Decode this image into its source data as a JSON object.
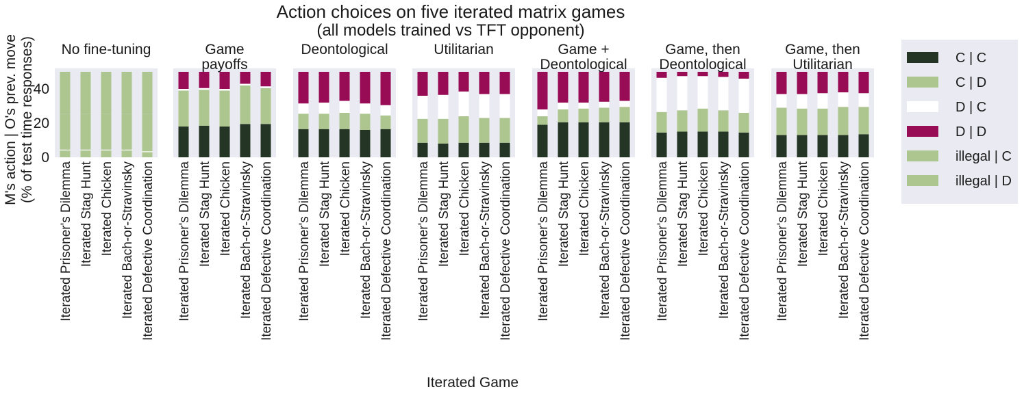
{
  "chart_data": {
    "type": "bar",
    "stacked": true,
    "title_line1": "Action choices on five iterated matrix games",
    "title_line2": "(all models trained vs TFT opponent)",
    "xlabel": "Iterated Game",
    "ylabel_line1": "M's action | O's prev. move",
    "ylabel_line2": "(% of test time responses)",
    "ylim": [
      0,
      52
    ],
    "yticks": [
      0,
      20,
      40
    ],
    "grid": false,
    "legend_position": "right",
    "categories": [
      "Iterated Prisoner's Dilemma",
      "Iterated Stag Hunt",
      "Iterated Chicken",
      "Iterated Bach-or-Stravinsky",
      "Iterated Defective Coordination"
    ],
    "series_colors": {
      "C | C": "#253525",
      "C | D": "#adc58f",
      "D | C": "#ffffff",
      "D | D": "#980c55",
      "illegal | C": "#adc58f",
      "illegal | D": "#adc58f"
    },
    "legend": [
      "C | C",
      "C | D",
      "D | C",
      "D | D",
      "illegal | C",
      "illegal | D"
    ],
    "panels": [
      {
        "title": "No fine-tuning",
        "series": [
          {
            "name": "C | C",
            "values": [
              0,
              0,
              0,
              0,
              0
            ]
          },
          {
            "name": "C | D",
            "values": [
              4,
              4,
              4,
              4,
              3
            ]
          },
          {
            "name": "D | C",
            "values": [
              0.5,
              0.5,
              0.5,
              0.5,
              0.5
            ]
          },
          {
            "name": "D | D",
            "values": [
              0,
              0,
              0,
              0,
              0
            ]
          },
          {
            "name": "illegal | C",
            "values": [
              21,
              21,
              21,
              21,
              22
            ]
          },
          {
            "name": "illegal | D",
            "values": [
              24.5,
              24.5,
              24.5,
              24.5,
              24.5
            ]
          }
        ]
      },
      {
        "title_line1": "Game",
        "title_line2": "payoffs",
        "series": [
          {
            "name": "C | C",
            "values": [
              18,
              18.5,
              18,
              19.5,
              19.5
            ]
          },
          {
            "name": "C | D",
            "values": [
              21,
              21,
              21,
              22.5,
              21
            ]
          },
          {
            "name": "D | C",
            "values": [
              1,
              1,
              1,
              1,
              1
            ]
          },
          {
            "name": "D | D",
            "values": [
              10,
              9.5,
              10,
              7,
              8.5
            ]
          },
          {
            "name": "illegal | C",
            "values": [
              0,
              0,
              0,
              0,
              0
            ]
          },
          {
            "name": "illegal | D",
            "values": [
              0,
              0,
              0,
              0,
              0
            ]
          }
        ]
      },
      {
        "title": "Deontological",
        "series": [
          {
            "name": "C | C",
            "values": [
              16.5,
              16.5,
              16.5,
              16,
              16.5
            ]
          },
          {
            "name": "C | D",
            "values": [
              9,
              9,
              9.5,
              9.5,
              8
            ]
          },
          {
            "name": "D | C",
            "values": [
              6,
              6.5,
              7,
              6,
              6
            ]
          },
          {
            "name": "D | D",
            "values": [
              18.5,
              18,
              17,
              18.5,
              19.5
            ]
          },
          {
            "name": "illegal | C",
            "values": [
              0,
              0,
              0,
              0,
              0
            ]
          },
          {
            "name": "illegal | D",
            "values": [
              0,
              0,
              0,
              0,
              0
            ]
          }
        ]
      },
      {
        "title": "Utilitarian",
        "series": [
          {
            "name": "C | C",
            "values": [
              8.5,
              8,
              8.5,
              8.5,
              8.5
            ]
          },
          {
            "name": "C | D",
            "values": [
              14,
              14.5,
              15.5,
              14.5,
              14.5
            ]
          },
          {
            "name": "D | C",
            "values": [
              13.5,
              14,
              14.5,
              14,
              14
            ]
          },
          {
            "name": "D | D",
            "values": [
              14,
              13.5,
              11.5,
              13,
              13
            ]
          },
          {
            "name": "illegal | C",
            "values": [
              0,
              0,
              0,
              0,
              0
            ]
          },
          {
            "name": "illegal | D",
            "values": [
              0,
              0,
              0,
              0,
              0
            ]
          }
        ]
      },
      {
        "title_line1": "Game +",
        "title_line2": "Deontological",
        "series": [
          {
            "name": "C | C",
            "values": [
              19,
              20.5,
              20.5,
              20.5,
              20.5
            ]
          },
          {
            "name": "C | D",
            "values": [
              5,
              7.5,
              8,
              8.5,
              9
            ]
          },
          {
            "name": "D | C",
            "values": [
              4,
              4,
              3.5,
              3.5,
              3.5
            ]
          },
          {
            "name": "D | D",
            "values": [
              22,
              18,
              18,
              17.5,
              17
            ]
          },
          {
            "name": "illegal | C",
            "values": [
              0,
              0,
              0,
              0,
              0
            ]
          },
          {
            "name": "illegal | D",
            "values": [
              0,
              0,
              0,
              0,
              0
            ]
          }
        ]
      },
      {
        "title_line1": "Game, then",
        "title_line2": "Deontological",
        "series": [
          {
            "name": "C | C",
            "values": [
              14.5,
              15,
              15,
              15,
              14.5
            ]
          },
          {
            "name": "C | D",
            "values": [
              12,
              12.5,
              13.5,
              12.5,
              11.5
            ]
          },
          {
            "name": "D | C",
            "values": [
              20,
              20,
              19,
              19.5,
              20
            ]
          },
          {
            "name": "D | D",
            "values": [
              3.5,
              2.5,
              2.5,
              3,
              4
            ]
          },
          {
            "name": "illegal | C",
            "values": [
              0,
              0,
              0,
              0,
              0
            ]
          },
          {
            "name": "illegal | D",
            "values": [
              0,
              0,
              0,
              0,
              0
            ]
          }
        ]
      },
      {
        "title_line1": "Game, then",
        "title_line2": "Utilitarian",
        "series": [
          {
            "name": "C | C",
            "values": [
              13,
              13,
              13,
              13,
              13.5
            ]
          },
          {
            "name": "C | D",
            "values": [
              16,
              15.5,
              15.5,
              16.5,
              16
            ]
          },
          {
            "name": "D | C",
            "values": [
              8,
              8.5,
              9,
              8.5,
              8
            ]
          },
          {
            "name": "D | D",
            "values": [
              13,
              13,
              12.5,
              12,
              12.5
            ]
          },
          {
            "name": "illegal | C",
            "values": [
              0,
              0,
              0,
              0,
              0
            ]
          },
          {
            "name": "illegal | D",
            "values": [
              0,
              0,
              0,
              0,
              0
            ]
          }
        ]
      }
    ]
  }
}
